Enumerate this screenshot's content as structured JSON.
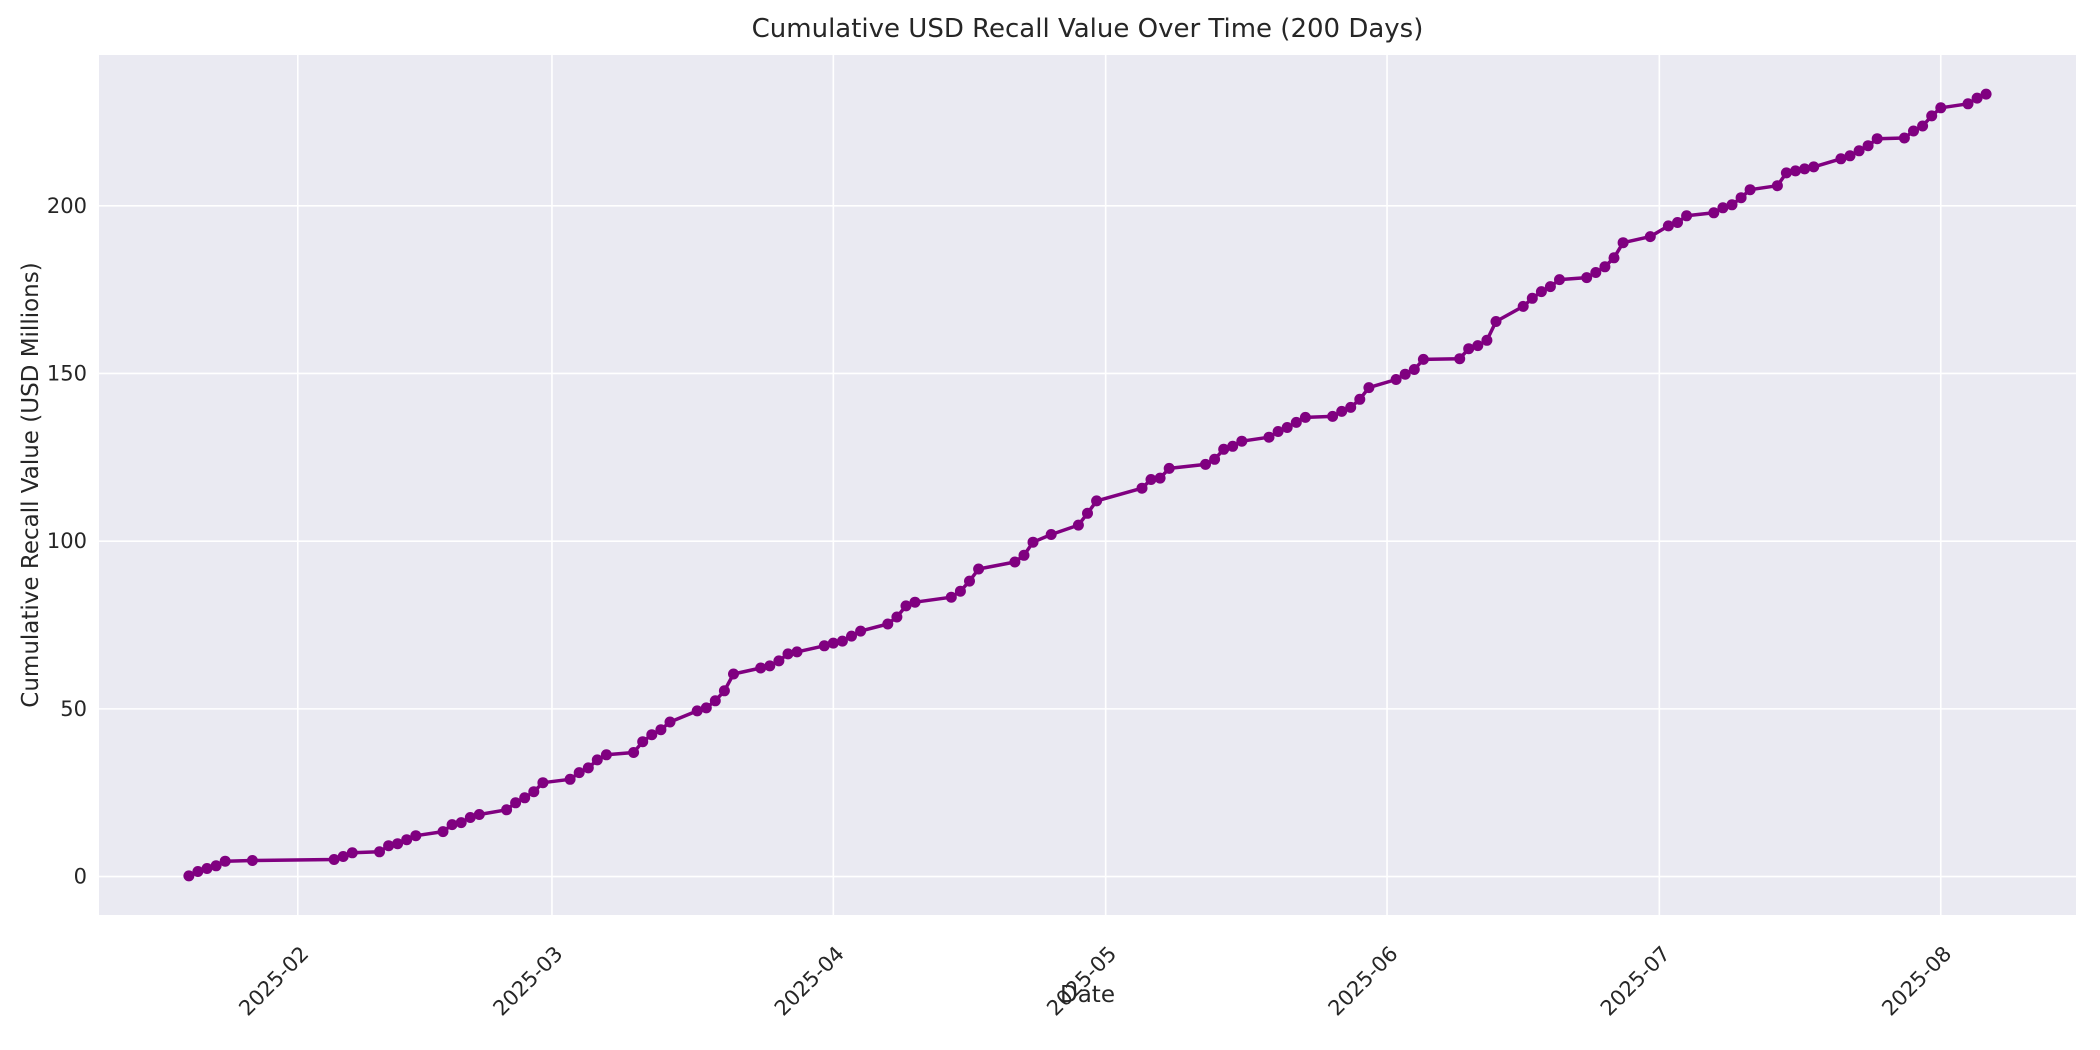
{
  "chart_data": {
    "type": "line",
    "title": "Cumulative USD Recall Value Over Time (200 Days)",
    "xlabel": "Date",
    "ylabel": "Cumulative Recall Value (USD Millions)",
    "grid": true,
    "legend": "none",
    "x_span_days": 200,
    "y_ticks": [
      0,
      50,
      100,
      150,
      200
    ],
    "x_ticks": [
      {
        "label": "2025-02",
        "date": "2025-02-01"
      },
      {
        "label": "2025-03",
        "date": "2025-03-01"
      },
      {
        "label": "2025-04",
        "date": "2025-04-01"
      },
      {
        "label": "2025-05",
        "date": "2025-05-01"
      },
      {
        "label": "2025-06",
        "date": "2025-06-01"
      },
      {
        "label": "2025-07",
        "date": "2025-07-01"
      },
      {
        "label": "2025-08",
        "date": "2025-08-01"
      }
    ],
    "styles": {
      "line_color": "#800080",
      "plot_bg": "#EAEAF2",
      "grid_color": "#FFFFFF",
      "text_color": "#262626",
      "fig_bg": "#FFFFFF"
    },
    "series": [
      {
        "name": "Cumulative Recall Value",
        "color": "#800080",
        "marker": "o",
        "points": [
          [
            "2025-01-20",
            0.2
          ],
          [
            "2025-01-21",
            1.5
          ],
          [
            "2025-01-22",
            2.4
          ],
          [
            "2025-01-23",
            3.2
          ],
          [
            "2025-01-24",
            4.6
          ],
          [
            "2025-01-27",
            4.8
          ],
          [
            "2025-02-05",
            5.1
          ],
          [
            "2025-02-06",
            6.0
          ],
          [
            "2025-02-07",
            7.1
          ],
          [
            "2025-02-10",
            7.4
          ],
          [
            "2025-02-11",
            9.2
          ],
          [
            "2025-02-12",
            9.8
          ],
          [
            "2025-02-13",
            11.0
          ],
          [
            "2025-02-14",
            12.2
          ],
          [
            "2025-02-17",
            13.4
          ],
          [
            "2025-02-18",
            15.5
          ],
          [
            "2025-02-19",
            16.1
          ],
          [
            "2025-02-20",
            17.6
          ],
          [
            "2025-02-21",
            18.5
          ],
          [
            "2025-02-24",
            19.9
          ],
          [
            "2025-02-25",
            22.0
          ],
          [
            "2025-02-26",
            23.5
          ],
          [
            "2025-02-27",
            25.3
          ],
          [
            "2025-02-28",
            28.0
          ],
          [
            "2025-03-03",
            29.0
          ],
          [
            "2025-03-04",
            31.0
          ],
          [
            "2025-03-05",
            32.4
          ],
          [
            "2025-03-06",
            34.8
          ],
          [
            "2025-03-07",
            36.3
          ],
          [
            "2025-03-10",
            37.0
          ],
          [
            "2025-03-11",
            40.2
          ],
          [
            "2025-03-12",
            42.3
          ],
          [
            "2025-03-13",
            43.8
          ],
          [
            "2025-03-14",
            46.1
          ],
          [
            "2025-03-17",
            49.4
          ],
          [
            "2025-03-18",
            50.3
          ],
          [
            "2025-03-19",
            52.4
          ],
          [
            "2025-03-20",
            55.4
          ],
          [
            "2025-03-21",
            60.4
          ],
          [
            "2025-03-24",
            62.2
          ],
          [
            "2025-03-25",
            62.8
          ],
          [
            "2025-03-26",
            64.3
          ],
          [
            "2025-03-27",
            66.4
          ],
          [
            "2025-03-28",
            67.0
          ],
          [
            "2025-03-31",
            68.8
          ],
          [
            "2025-04-01",
            69.6
          ],
          [
            "2025-04-02",
            70.2
          ],
          [
            "2025-04-03",
            71.7
          ],
          [
            "2025-04-04",
            73.2
          ],
          [
            "2025-04-07",
            75.3
          ],
          [
            "2025-04-08",
            77.4
          ],
          [
            "2025-04-09",
            80.7
          ],
          [
            "2025-04-10",
            81.8
          ],
          [
            "2025-04-14",
            83.3
          ],
          [
            "2025-04-15",
            85.1
          ],
          [
            "2025-04-16",
            88.1
          ],
          [
            "2025-04-17",
            91.7
          ],
          [
            "2025-04-21",
            93.8
          ],
          [
            "2025-04-22",
            95.8
          ],
          [
            "2025-04-23",
            99.7
          ],
          [
            "2025-04-25",
            102.0
          ],
          [
            "2025-04-28",
            104.8
          ],
          [
            "2025-04-29",
            108.3
          ],
          [
            "2025-04-30",
            112.0
          ],
          [
            "2025-05-05",
            115.8
          ],
          [
            "2025-05-06",
            118.4
          ],
          [
            "2025-05-07",
            118.8
          ],
          [
            "2025-05-08",
            121.7
          ],
          [
            "2025-05-12",
            122.9
          ],
          [
            "2025-05-13",
            124.4
          ],
          [
            "2025-05-14",
            127.4
          ],
          [
            "2025-05-15",
            128.3
          ],
          [
            "2025-05-16",
            129.8
          ],
          [
            "2025-05-19",
            131.0
          ],
          [
            "2025-05-20",
            132.7
          ],
          [
            "2025-05-21",
            133.9
          ],
          [
            "2025-05-22",
            135.4
          ],
          [
            "2025-05-23",
            136.9
          ],
          [
            "2025-05-26",
            137.2
          ],
          [
            "2025-05-27",
            138.7
          ],
          [
            "2025-05-28",
            139.9
          ],
          [
            "2025-05-29",
            142.3
          ],
          [
            "2025-05-30",
            145.8
          ],
          [
            "2025-06-02",
            148.2
          ],
          [
            "2025-06-03",
            149.8
          ],
          [
            "2025-06-04",
            151.2
          ],
          [
            "2025-06-05",
            154.2
          ],
          [
            "2025-06-09",
            154.4
          ],
          [
            "2025-06-10",
            157.4
          ],
          [
            "2025-06-11",
            158.3
          ],
          [
            "2025-06-12",
            159.9
          ],
          [
            "2025-06-13",
            165.5
          ],
          [
            "2025-06-16",
            170.0
          ],
          [
            "2025-06-17",
            172.4
          ],
          [
            "2025-06-18",
            174.4
          ],
          [
            "2025-06-19",
            175.9
          ],
          [
            "2025-06-20",
            178.0
          ],
          [
            "2025-06-23",
            178.6
          ],
          [
            "2025-06-24",
            180.1
          ],
          [
            "2025-06-25",
            181.8
          ],
          [
            "2025-06-26",
            184.5
          ],
          [
            "2025-06-27",
            189.0
          ],
          [
            "2025-06-30",
            190.8
          ],
          [
            "2025-07-02",
            194.0
          ],
          [
            "2025-07-03",
            195.0
          ],
          [
            "2025-07-04",
            197.0
          ],
          [
            "2025-07-07",
            197.9
          ],
          [
            "2025-07-08",
            199.4
          ],
          [
            "2025-07-09",
            200.3
          ],
          [
            "2025-07-10",
            202.4
          ],
          [
            "2025-07-11",
            204.8
          ],
          [
            "2025-07-14",
            206.0
          ],
          [
            "2025-07-15",
            209.8
          ],
          [
            "2025-07-16",
            210.4
          ],
          [
            "2025-07-17",
            211.0
          ],
          [
            "2025-07-18",
            211.6
          ],
          [
            "2025-07-21",
            214.0
          ],
          [
            "2025-07-22",
            214.9
          ],
          [
            "2025-07-23",
            216.4
          ],
          [
            "2025-07-24",
            217.9
          ],
          [
            "2025-07-25",
            220.0
          ],
          [
            "2025-07-28",
            220.2
          ],
          [
            "2025-07-29",
            222.3
          ],
          [
            "2025-07-30",
            223.8
          ],
          [
            "2025-07-31",
            226.8
          ],
          [
            "2025-08-01",
            229.2
          ],
          [
            "2025-08-04",
            230.4
          ],
          [
            "2025-08-05",
            232.1
          ],
          [
            "2025-08-06",
            233.3
          ]
        ]
      }
    ]
  }
}
